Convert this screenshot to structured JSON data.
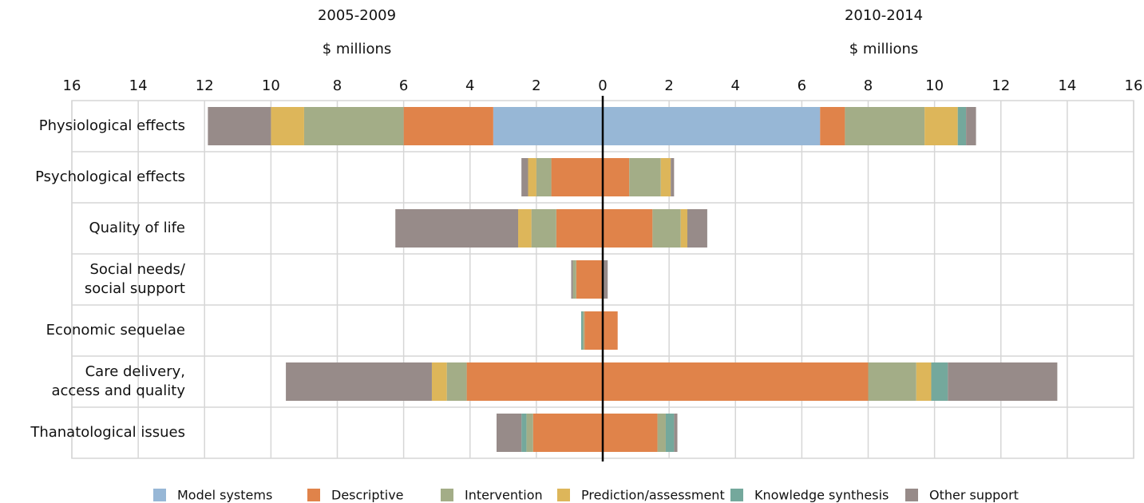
{
  "chart_data": {
    "type": "butterfly-stacked-bar",
    "left_title": "2005-2009",
    "left_unit": "$ millions",
    "right_title": "2010-2014",
    "right_unit": "$ millions",
    "categories": [
      "Physiological effects",
      "Psychological effects",
      "Quality of life",
      "Social needs/\nsocial support",
      "Economic sequelae",
      "Care delivery,\naccess and quality",
      "Thanatological issues"
    ],
    "xlim": [
      0,
      16
    ],
    "xticks": [
      0,
      2,
      4,
      6,
      8,
      10,
      12,
      14,
      16
    ],
    "grid": true,
    "series": [
      {
        "name": "Model systems",
        "color": "#97b7d6",
        "left": [
          3.3,
          0,
          0,
          0,
          0,
          0,
          0
        ],
        "right": [
          6.55,
          0,
          0,
          0,
          0,
          0,
          0
        ]
      },
      {
        "name": "Descriptive",
        "color": "#e0834a",
        "left": [
          2.7,
          1.55,
          1.4,
          0.8,
          0.55,
          4.1,
          2.1
        ],
        "right": [
          0.75,
          0.8,
          1.5,
          0,
          0.45,
          8.0,
          1.65
        ]
      },
      {
        "name": "Intervention",
        "color": "#a3ad87",
        "left": [
          3.0,
          0.45,
          0.75,
          0.1,
          0.05,
          0.6,
          0.2
        ],
        "right": [
          2.4,
          0.95,
          0.85,
          0,
          0,
          1.45,
          0.25
        ]
      },
      {
        "name": "Prediction/assessment",
        "color": "#ddb65a",
        "left": [
          1.0,
          0.25,
          0.4,
          0,
          0,
          0.45,
          0
        ],
        "right": [
          1.0,
          0.3,
          0.2,
          0,
          0,
          0.45,
          0
        ]
      },
      {
        "name": "Knowledge synthesis",
        "color": "#74a89c",
        "left": [
          0,
          0,
          0,
          0,
          0.05,
          0,
          0.15
        ],
        "right": [
          0.25,
          0,
          0,
          0,
          0,
          0.5,
          0.25
        ]
      },
      {
        "name": "Other support",
        "color": "#978b89",
        "left": [
          1.9,
          0.2,
          3.7,
          0.05,
          0,
          4.4,
          0.75
        ],
        "right": [
          0.3,
          0.1,
          0.6,
          0.15,
          0,
          3.3,
          0.1
        ]
      }
    ]
  }
}
